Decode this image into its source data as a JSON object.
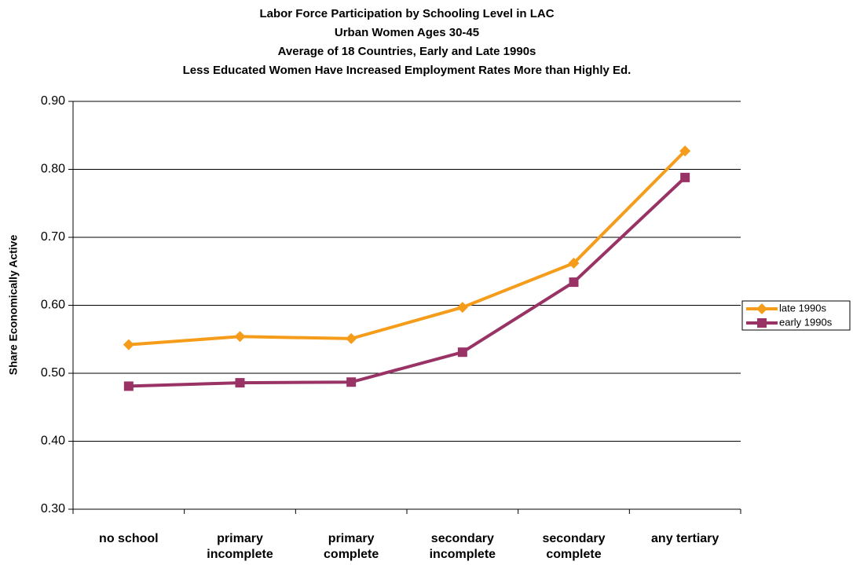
{
  "chart_data": {
    "type": "line",
    "title": [
      "Labor Force Participation by Schooling Level in LAC",
      "Urban Women Ages 30-45",
      "Average of 18 Countries, Early and Late 1990s",
      "Less Educated Women Have Increased Employment Rates More than Highly Ed."
    ],
    "y_label": "Share Economically Active",
    "categories": [
      "no school",
      "primary incomplete",
      "primary complete",
      "secondary incomplete",
      "secondary complete",
      "any tertiary"
    ],
    "series": [
      {
        "name": "late 1990s",
        "color": "#f59c1a",
        "marker": "diamond",
        "values": [
          0.542,
          0.554,
          0.551,
          0.597,
          0.662,
          0.827
        ]
      },
      {
        "name": "early 1990s",
        "color": "#993366",
        "marker": "square",
        "values": [
          0.481,
          0.486,
          0.487,
          0.531,
          0.634,
          0.788
        ]
      }
    ],
    "ylim": [
      0.3,
      0.9
    ],
    "yticks": [
      {
        "value": 0.3,
        "label": "0.30"
      },
      {
        "value": 0.4,
        "label": "0.40"
      },
      {
        "value": 0.5,
        "label": "0.50"
      },
      {
        "value": 0.6,
        "label": "0.60"
      },
      {
        "value": 0.7,
        "label": "0.70"
      },
      {
        "value": 0.8,
        "label": "0.80"
      },
      {
        "value": 0.9,
        "label": "0.90"
      }
    ],
    "grid": true,
    "legend": "right"
  }
}
